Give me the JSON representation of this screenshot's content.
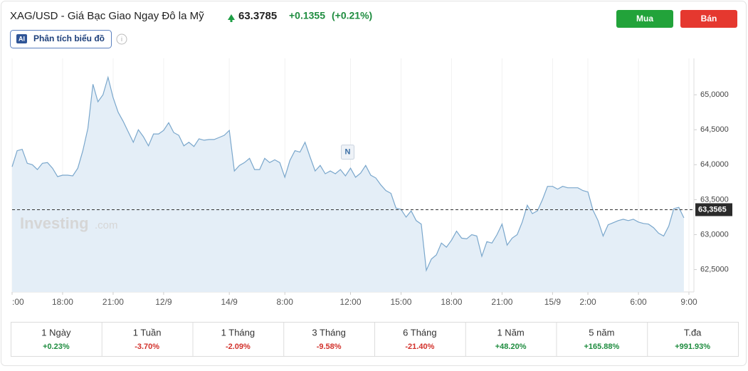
{
  "header": {
    "title": "XAG/USD - Giá Bạc Giao Ngay Đô la Mỹ",
    "price": "63.3785",
    "change": "+0.1355",
    "change_pct": "(+0.21%)",
    "ai_badge": "AI",
    "analysis_button": "Phân tích biểu đồ"
  },
  "buttons": {
    "buy": "Mua",
    "sell": "Bán"
  },
  "watermark": {
    "brand": "Investing",
    "suffix": ".com"
  },
  "chart_data": {
    "type": "line",
    "color": "#7aa7cc",
    "fill": "#e4eef7",
    "categories": [
      ":00",
      null,
      null,
      null,
      null,
      null,
      null,
      null,
      null,
      null,
      "18:00",
      null,
      null,
      null,
      null,
      null,
      null,
      null,
      null,
      null,
      "21:00",
      null,
      null,
      null,
      null,
      null,
      null,
      null,
      null,
      null,
      "12/9",
      null,
      null,
      null,
      null,
      null,
      null,
      null,
      null,
      null,
      null,
      null,
      null,
      "14/9",
      null,
      null,
      null,
      null,
      null,
      null,
      null,
      null,
      null,
      null,
      "8:00",
      null,
      null,
      null,
      null,
      null,
      null,
      null,
      null,
      null,
      null,
      null,
      null,
      "12:00",
      null,
      null,
      null,
      null,
      null,
      null,
      null,
      null,
      null,
      "15:00",
      null,
      null,
      null,
      null,
      null,
      null,
      null,
      null,
      null,
      "18:00",
      null,
      null,
      null,
      null,
      null,
      null,
      null,
      null,
      null,
      "21:00",
      null,
      null,
      null,
      null,
      null,
      null,
      null,
      null,
      null,
      "15/9",
      null,
      null,
      null,
      null,
      null,
      null,
      "2:00",
      null,
      null,
      null,
      null,
      null,
      null,
      null,
      null,
      null,
      "6:00",
      null,
      null,
      null,
      null,
      null,
      null,
      null,
      null,
      null,
      "9:00"
    ],
    "values": [
      63.97,
      64.2,
      64.22,
      64.02,
      64.0,
      63.93,
      64.02,
      64.03,
      63.95,
      63.83,
      63.85,
      63.85,
      63.84,
      63.95,
      64.2,
      64.52,
      65.15,
      64.9,
      65.0,
      65.25,
      64.96,
      64.75,
      64.62,
      64.47,
      64.32,
      64.5,
      64.4,
      64.27,
      64.44,
      64.44,
      64.49,
      64.6,
      64.46,
      64.42,
      64.27,
      64.32,
      64.26,
      64.37,
      64.35,
      64.36,
      64.36,
      64.39,
      64.42,
      64.49,
      63.91,
      63.99,
      64.03,
      64.09,
      63.93,
      63.93,
      64.09,
      64.03,
      64.07,
      64.03,
      63.82,
      64.06,
      64.2,
      64.18,
      64.32,
      64.11,
      63.91,
      63.99,
      63.87,
      63.91,
      63.87,
      63.93,
      63.84,
      63.95,
      63.82,
      63.88,
      63.99,
      63.85,
      63.81,
      63.71,
      63.63,
      63.59,
      63.38,
      63.36,
      63.25,
      63.34,
      63.2,
      63.15,
      62.49,
      62.65,
      62.71,
      62.88,
      62.82,
      62.92,
      63.05,
      62.95,
      62.94,
      63.0,
      62.98,
      62.69,
      62.9,
      62.88,
      63.0,
      63.15,
      62.85,
      62.95,
      63.0,
      63.18,
      63.42,
      63.3,
      63.34,
      63.5,
      63.69,
      63.69,
      63.65,
      63.69,
      63.67,
      63.67,
      63.67,
      63.63,
      63.61,
      63.35,
      63.2,
      62.98,
      63.14,
      63.17,
      63.2,
      63.22,
      63.2,
      63.22,
      63.18,
      63.16,
      63.15,
      63.1,
      63.02,
      62.98,
      63.12,
      63.37,
      63.39,
      63.24,
      null
    ],
    "ylim": [
      62.18,
      65.52
    ],
    "yticks": [
      {
        "value": 62.5,
        "label": "62,5000"
      },
      {
        "value": 63.0,
        "label": "63,0000"
      },
      {
        "value": 63.5,
        "label": "63,5000"
      },
      {
        "value": 64.0,
        "label": "64,0000"
      },
      {
        "value": 64.5,
        "label": "64,5000"
      },
      {
        "value": 65.0,
        "label": "65,0000"
      }
    ],
    "last_price": {
      "value": 63.3565,
      "label": "63,3565"
    },
    "annotation": {
      "index": 67,
      "value": 64.18,
      "text": "N"
    }
  },
  "performance": [
    {
      "period": "1 Ngày",
      "change": "+0.23%"
    },
    {
      "period": "1 Tuần",
      "change": "-3.70%"
    },
    {
      "period": "1 Tháng",
      "change": "-2.09%"
    },
    {
      "period": "3 Tháng",
      "change": "-9.58%"
    },
    {
      "period": "6 Tháng",
      "change": "-21.40%"
    },
    {
      "period": "1 Năm",
      "change": "+48.20%"
    },
    {
      "period": "5 năm",
      "change": "+165.88%"
    },
    {
      "period": "T.đa",
      "change": "+991.93%"
    }
  ]
}
